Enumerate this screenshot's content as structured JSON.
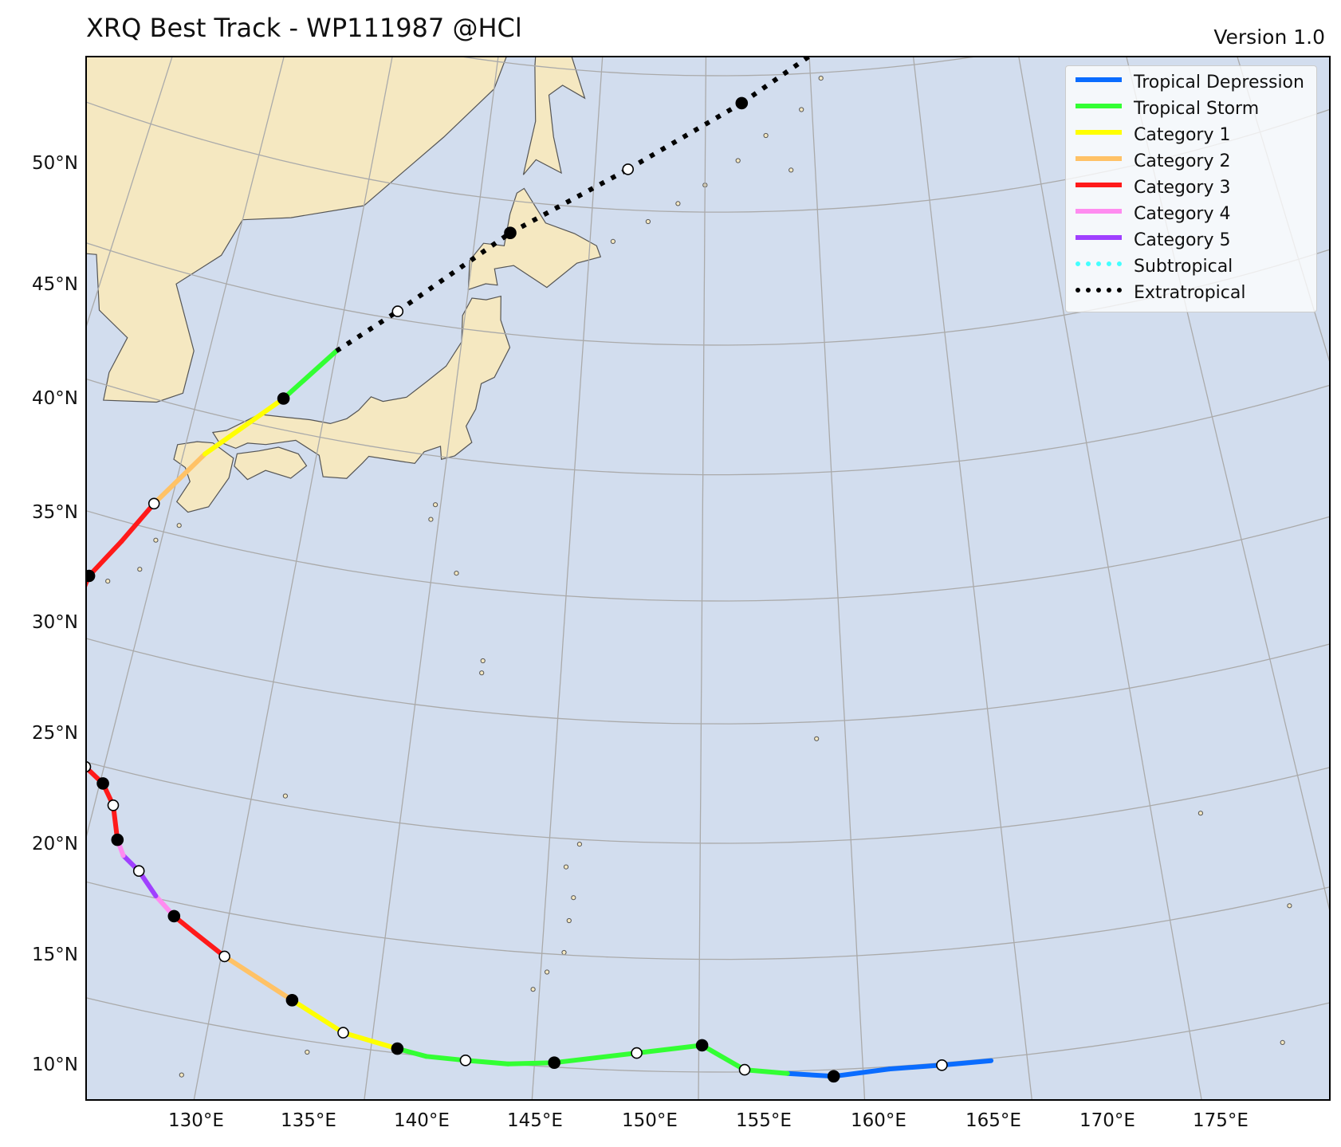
{
  "header": {
    "title": "XRQ Best Track - WP111987  @HCl",
    "version": "Version 1.0"
  },
  "map": {
    "projection": "lambert-conic",
    "colors": {
      "ocean": "#d2ddee",
      "land": "#f5e8c1",
      "coast": "#555555",
      "grid": "#aaaaaa",
      "frame": "#000000"
    },
    "lat_labels": [
      "50°N",
      "45°N",
      "40°N",
      "35°N",
      "30°N",
      "25°N",
      "20°N",
      "15°N",
      "10°N"
    ],
    "lon_labels": [
      "130°E",
      "135°E",
      "140°E",
      "145°E",
      "150°E",
      "155°E",
      "160°E",
      "165°E",
      "170°E",
      "175°E"
    ]
  },
  "legend": {
    "items": [
      {
        "label": "Tropical Depression",
        "color": "#0a6cff",
        "style": "solid"
      },
      {
        "label": "Tropical Storm",
        "color": "#33ff33",
        "style": "solid"
      },
      {
        "label": "Category 1",
        "color": "#ffff00",
        "style": "solid"
      },
      {
        "label": "Category 2",
        "color": "#ffc266",
        "style": "solid"
      },
      {
        "label": "Category 3",
        "color": "#ff1a1a",
        "style": "solid"
      },
      {
        "label": "Category 4",
        "color": "#ff8cf0",
        "style": "solid"
      },
      {
        "label": "Category 5",
        "color": "#a040ff",
        "style": "solid"
      },
      {
        "label": "Subtropical",
        "color": "#44ffff",
        "style": "dotted"
      },
      {
        "label": "Extratropical",
        "color": "#000000",
        "style": "dotted"
      }
    ]
  },
  "track": {
    "points": [
      {
        "lon": 158.9,
        "lat": 9.9,
        "cat": "TD",
        "marker": "none"
      },
      {
        "lon": 157.4,
        "lat": 9.9,
        "cat": "TD",
        "marker": "open"
      },
      {
        "lon": 155.8,
        "lat": 9.9,
        "cat": "TD",
        "marker": "none"
      },
      {
        "lon": 154.1,
        "lat": 9.7,
        "cat": "TD",
        "marker": "filled"
      },
      {
        "lon": 152.7,
        "lat": 9.9,
        "cat": "TD",
        "marker": "none"
      },
      {
        "lon": 151.4,
        "lat": 10.1,
        "cat": "TS",
        "marker": "open"
      },
      {
        "lon": 150.1,
        "lat": 11.2,
        "cat": "TS",
        "marker": "filled"
      },
      {
        "lon": 148.1,
        "lat": 10.8,
        "cat": "TS",
        "marker": "open"
      },
      {
        "lon": 145.6,
        "lat": 10.2,
        "cat": "TS",
        "marker": "filled"
      },
      {
        "lon": 144.2,
        "lat": 10.0,
        "cat": "TS",
        "marker": "none"
      },
      {
        "lon": 142.9,
        "lat": 10.0,
        "cat": "TS",
        "marker": "open"
      },
      {
        "lon": 141.7,
        "lat": 10.0,
        "cat": "TS",
        "marker": "none"
      },
      {
        "lon": 140.8,
        "lat": 10.2,
        "cat": "TS",
        "marker": "filled"
      },
      {
        "lon": 139.1,
        "lat": 10.6,
        "cat": "C1",
        "marker": "open"
      },
      {
        "lon": 137.4,
        "lat": 11.7,
        "cat": "C1",
        "marker": "filled"
      },
      {
        "lon": 135.1,
        "lat": 13.1,
        "cat": "C2",
        "marker": "open"
      },
      {
        "lon": 134.0,
        "lat": 13.9,
        "cat": "C3",
        "marker": "none"
      },
      {
        "lon": 133.3,
        "lat": 14.4,
        "cat": "C3",
        "marker": "filled"
      },
      {
        "lon": 132.6,
        "lat": 15.1,
        "cat": "C4",
        "marker": "none"
      },
      {
        "lon": 131.9,
        "lat": 16.0,
        "cat": "C5",
        "marker": "open"
      },
      {
        "lon": 131.3,
        "lat": 16.5,
        "cat": "C5",
        "marker": "none"
      },
      {
        "lon": 131.0,
        "lat": 17.1,
        "cat": "C4",
        "marker": "filled"
      },
      {
        "lon": 130.6,
        "lat": 18.5,
        "cat": "C3",
        "marker": "open"
      },
      {
        "lon": 130.1,
        "lat": 19.3,
        "cat": "C3",
        "marker": "filled"
      },
      {
        "lon": 129.4,
        "lat": 19.8,
        "cat": "C3",
        "marker": "open"
      },
      {
        "lon": 128.7,
        "lat": 20.5,
        "cat": "C4",
        "marker": "filled"
      },
      {
        "lon": 128.1,
        "lat": 21.0,
        "cat": "C4",
        "marker": "open"
      },
      {
        "lon": 127.7,
        "lat": 21.9,
        "cat": "C4",
        "marker": "none"
      },
      {
        "lon": 127.6,
        "lat": 22.6,
        "cat": "C4",
        "marker": "filled"
      },
      {
        "lon": 127.4,
        "lat": 23.5,
        "cat": "C3",
        "marker": "none"
      },
      {
        "lon": 127.5,
        "lat": 24.5,
        "cat": "C3",
        "marker": "open"
      },
      {
        "lon": 127.8,
        "lat": 27.5,
        "cat": "C3",
        "marker": "filled"
      },
      {
        "lon": 128.6,
        "lat": 29.2,
        "cat": "C3",
        "marker": "none"
      },
      {
        "lon": 129.4,
        "lat": 31.0,
        "cat": "C3",
        "marker": "open"
      },
      {
        "lon": 130.8,
        "lat": 33.4,
        "cat": "C2",
        "marker": "none"
      },
      {
        "lon": 133.3,
        "lat": 36.2,
        "cat": "C1",
        "marker": "filled"
      },
      {
        "lon": 135.0,
        "lat": 38.4,
        "cat": "TS",
        "marker": "none"
      },
      {
        "lon": 137.2,
        "lat": 40.3,
        "cat": "EX",
        "marker": "open"
      },
      {
        "lon": 141.5,
        "lat": 43.8,
        "cat": "EX",
        "marker": "filled"
      },
      {
        "lon": 146.5,
        "lat": 46.5,
        "cat": "EX",
        "marker": "open"
      },
      {
        "lon": 151.7,
        "lat": 49.0,
        "cat": "EX",
        "marker": "filled"
      },
      {
        "lon": 156.3,
        "lat": 51.2,
        "cat": "EX",
        "marker": "open"
      },
      {
        "lon": 161.2,
        "lat": 51.0,
        "cat": "EX",
        "marker": "filled"
      },
      {
        "lon": 165.3,
        "lat": 51.3,
        "cat": "EX",
        "marker": "open"
      },
      {
        "lon": 169.0,
        "lat": 51.7,
        "cat": "EX",
        "marker": "none"
      }
    ],
    "category_colors": {
      "TD": "#0a6cff",
      "TS": "#33ff33",
      "C1": "#ffff00",
      "C2": "#ffc266",
      "C3": "#ff1a1a",
      "C4": "#ff8cf0",
      "C5": "#a040ff",
      "SS": "#44ffff",
      "EX": "#000000"
    }
  }
}
